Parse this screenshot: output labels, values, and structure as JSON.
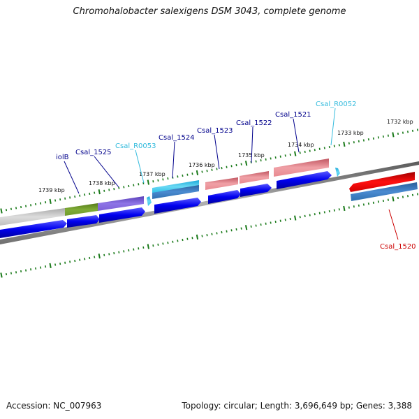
{
  "title": "Chromohalobacter salexigens DSM 3043, complete genome",
  "footer": {
    "accession": "Accession: NC_007963",
    "summary": "Topology: circular; Length: 3,696,649 bp; Genes: 3,388"
  },
  "colors": {
    "cds": "#0000ee",
    "rna": "#33c4e8",
    "cog_pink": "#e88a90",
    "cog_red": "#ee0000",
    "cog_blue": "#3f7fc0",
    "cog_purple": "#7b5fd8",
    "cog_olive": "#6f9a2a",
    "cog_grey": "#c0c0c0",
    "ticks": "#1a7a1a",
    "backbone": "#808080"
  },
  "kbp_labels": [
    "1732 kbp",
    "1733 kbp",
    "1734 kbp",
    "1735 kbp",
    "1736 kbp",
    "1737 kbp",
    "1738 kbp",
    "1739 kbp"
  ],
  "gene_labels": [
    {
      "text": "Csal_1520",
      "color": "#cc0000"
    },
    {
      "text": "Csal_R0052",
      "color": "#33bbdd"
    },
    {
      "text": "Csal_1521",
      "color": "#00008b"
    },
    {
      "text": "Csal_1522",
      "color": "#00008b"
    },
    {
      "text": "Csal_1523",
      "color": "#00008b"
    },
    {
      "text": "Csal_1524",
      "color": "#00008b"
    },
    {
      "text": "Csal_R0053",
      "color": "#33bbdd"
    },
    {
      "text": "Csal_1525",
      "color": "#00008b"
    },
    {
      "text": "iolB",
      "color": "#00008b"
    }
  ]
}
